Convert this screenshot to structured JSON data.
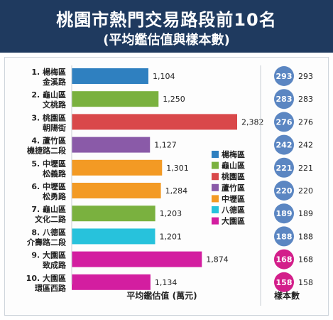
{
  "header": {
    "title": "桃園市熱門交易路段前10名",
    "subtitle": "(平均鑑估值與樣本數)"
  },
  "chart_data": {
    "type": "bar",
    "orientation": "horizontal",
    "categories": [
      [
        "1. 楊梅區",
        "金溪路"
      ],
      [
        "2. 龜山區",
        "文桃路"
      ],
      [
        "3. 桃園區",
        "朝陽街"
      ],
      [
        "4. 蘆竹區",
        "機捷路二段"
      ],
      [
        "5. 中壢區",
        "松義路"
      ],
      [
        "6. 中壢區",
        "松勇路"
      ],
      [
        "7. 龜山區",
        "文化二路"
      ],
      [
        "8. 八德區",
        "介壽路二段"
      ],
      [
        "9. 大園區",
        "致成路"
      ],
      [
        "10. 大園區",
        "環區西路"
      ]
    ],
    "values": [
      1104,
      1250,
      2382,
      1127,
      1301,
      1284,
      1203,
      1201,
      1874,
      1134
    ],
    "value_labels": [
      "1,104",
      "1,250",
      "2,382",
      "1,127",
      "1,301",
      "1,284",
      "1,203",
      "1,201",
      "1,874",
      "1,134"
    ],
    "bar_districts": [
      "楊梅區",
      "龜山區",
      "桃園區",
      "蘆竹區",
      "中壢區",
      "中壢區",
      "龜山區",
      "八德區",
      "大園區",
      "大園區"
    ],
    "sample_counts": [
      293,
      283,
      276,
      242,
      221,
      220,
      189,
      188,
      168,
      158
    ],
    "xlabel": "平均鑑估值 (萬元)",
    "sample_label": "樣本數",
    "legend": [
      {
        "name": "楊梅區",
        "color": "#2f80c0"
      },
      {
        "name": "龜山區",
        "color": "#7ab13f"
      },
      {
        "name": "桃園區",
        "color": "#d9484a"
      },
      {
        "name": "蘆竹區",
        "color": "#8a5aa8"
      },
      {
        "name": "中壢區",
        "color": "#f39a24"
      },
      {
        "name": "八德區",
        "color": "#27c2dc"
      },
      {
        "name": "大園區",
        "color": "#d31ea0"
      }
    ],
    "circle_colors": {
      "default": "#5b86c2",
      "大園區": "#d31e8a"
    },
    "xlim": [
      0,
      2382
    ],
    "legend_position": "center-right"
  }
}
